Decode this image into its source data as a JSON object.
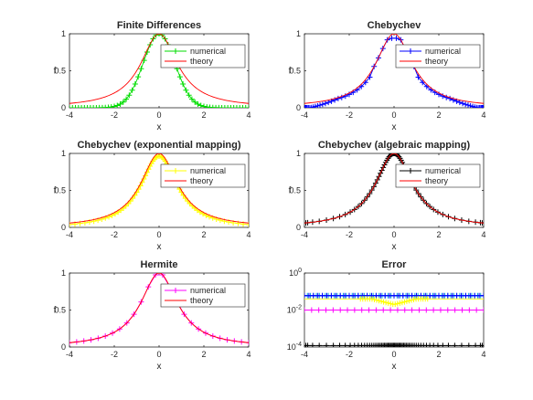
{
  "figure": {
    "colors": {
      "green": "#00dd00",
      "blue": "#0000ff",
      "yellow": "#ffff00",
      "black": "#000000",
      "magenta": "#ff00ff",
      "red": "#ff0000",
      "teal": "#0aa8d8"
    }
  },
  "chart_data": [
    {
      "type": "line",
      "title": "Finite Differences",
      "xlabel": "x",
      "ylabel": "f",
      "xlim": [
        -4,
        4
      ],
      "ylim": [
        0,
        1
      ],
      "xticks": [
        "-4",
        "-2",
        "0",
        "2",
        "4"
      ],
      "yticks": [
        "0",
        "0.5",
        "1"
      ],
      "legend_position": "top-right",
      "numerical_color": "green",
      "numerical_sample": {
        "x_start": -4,
        "x_end": 4,
        "count": 61,
        "function": "exp(-x^2)"
      },
      "series": [
        {
          "name": "numerical",
          "x": [
            -4,
            -3,
            -2,
            -1.5,
            -1,
            -0.5,
            0,
            0.5,
            1,
            1.5,
            2,
            3,
            4
          ],
          "y": [
            0.0,
            0.0,
            0.02,
            0.1,
            0.37,
            0.78,
            1.0,
            0.78,
            0.37,
            0.1,
            0.02,
            0.0,
            0.0
          ]
        },
        {
          "name": "theory",
          "x": [
            -4,
            -3,
            -2,
            -1.5,
            -1,
            -0.5,
            0,
            0.5,
            1,
            1.5,
            2,
            3,
            4
          ],
          "y": [
            0.06,
            0.1,
            0.2,
            0.31,
            0.5,
            0.8,
            1.0,
            0.8,
            0.5,
            0.31,
            0.2,
            0.1,
            0.06
          ]
        }
      ]
    },
    {
      "type": "line",
      "title": "Chebychev",
      "xlabel": "x",
      "ylabel": "f",
      "xlim": [
        -4,
        4
      ],
      "ylim": [
        0,
        1
      ],
      "xticks": [
        "-4",
        "-2",
        "0",
        "2",
        "4"
      ],
      "yticks": [
        "0",
        "0.5",
        "1"
      ],
      "legend_position": "top-right",
      "numerical_color": "blue",
      "numerical_sample": {
        "grid": "chebyshev",
        "count": 64,
        "function": "1/(1+x^2)*0.94",
        "cap": 0.94
      },
      "series": [
        {
          "name": "numerical",
          "x": [
            -4,
            -3,
            -2,
            -1,
            -0.5,
            0,
            0.5,
            1,
            2,
            3,
            4
          ],
          "y": [
            0.0,
            0.03,
            0.15,
            0.47,
            0.75,
            0.94,
            0.75,
            0.47,
            0.15,
            0.03,
            0.0
          ]
        },
        {
          "name": "theory",
          "x": [
            -4,
            -3,
            -2,
            -1,
            -0.5,
            0,
            0.5,
            1,
            2,
            3,
            4
          ],
          "y": [
            0.06,
            0.1,
            0.2,
            0.5,
            0.8,
            1.0,
            0.8,
            0.5,
            0.2,
            0.1,
            0.06
          ]
        }
      ]
    },
    {
      "type": "line",
      "title": "Chebychev (exponential mapping)",
      "xlabel": "x",
      "ylabel": "f",
      "xlim": [
        -4,
        4
      ],
      "ylim": [
        0,
        1
      ],
      "xticks": [
        "-4",
        "-2",
        "0",
        "2",
        "4"
      ],
      "yticks": [
        "0",
        "0.5",
        "1"
      ],
      "legend_position": "top-right",
      "numerical_color": "yellow",
      "numerical_sample": {
        "grid": "exponential-map",
        "count": 70,
        "function": "1/(1+x^2)*0.985"
      },
      "series": [
        {
          "name": "numerical",
          "x": [
            -4,
            -3,
            -2,
            -1,
            -0.5,
            0,
            0.5,
            1,
            2,
            3,
            4
          ],
          "y": [
            0.03,
            0.07,
            0.17,
            0.47,
            0.78,
            0.98,
            0.78,
            0.47,
            0.17,
            0.07,
            0.03
          ]
        },
        {
          "name": "theory",
          "x": [
            -4,
            -3,
            -2,
            -1,
            -0.5,
            0,
            0.5,
            1,
            2,
            3,
            4
          ],
          "y": [
            0.06,
            0.1,
            0.2,
            0.5,
            0.8,
            1.0,
            0.8,
            0.5,
            0.2,
            0.1,
            0.06
          ]
        }
      ]
    },
    {
      "type": "line",
      "title": "Chebychev (algebraic mapping)",
      "xlabel": "x",
      "ylabel": "f",
      "xlim": [
        -4,
        4
      ],
      "ylim": [
        0,
        1
      ],
      "xticks": [
        "-4",
        "-2",
        "0",
        "2",
        "4"
      ],
      "yticks": [
        "0",
        "0.5",
        "1"
      ],
      "legend_position": "top-right",
      "numerical_color": "black",
      "numerical_sample": {
        "grid": "algebraic-map",
        "count": 64,
        "function": "1/(1+x^2)"
      },
      "series": [
        {
          "name": "numerical",
          "x": [
            -4,
            -3,
            -2,
            -1,
            -0.5,
            0,
            0.5,
            1,
            2,
            3,
            4
          ],
          "y": [
            0.06,
            0.1,
            0.2,
            0.5,
            0.8,
            1.0,
            0.8,
            0.5,
            0.2,
            0.1,
            0.06
          ]
        },
        {
          "name": "theory",
          "x": [
            -4,
            -3,
            -2,
            -1,
            -0.5,
            0,
            0.5,
            1,
            2,
            3,
            4
          ],
          "y": [
            0.06,
            0.1,
            0.2,
            0.5,
            0.8,
            1.0,
            0.8,
            0.5,
            0.2,
            0.1,
            0.06
          ]
        }
      ]
    },
    {
      "type": "line",
      "title": "Hermite",
      "xlabel": "x",
      "ylabel": "f",
      "xlim": [
        -4,
        4
      ],
      "ylim": [
        0,
        1
      ],
      "xticks": [
        "-4",
        "-2",
        "0",
        "2",
        "4"
      ],
      "yticks": [
        "0",
        "0.5",
        "1"
      ],
      "legend_position": "top-right",
      "numerical_color": "magenta",
      "numerical_sample": {
        "x_start": -4,
        "x_end": 4,
        "count": 26,
        "function": "1/(1+x^2)"
      },
      "series": [
        {
          "name": "numerical",
          "x": [
            -4,
            -3,
            -2,
            -1,
            -0.5,
            0,
            0.5,
            1,
            2,
            3,
            4
          ],
          "y": [
            0.06,
            0.1,
            0.2,
            0.5,
            0.8,
            1.0,
            0.8,
            0.5,
            0.2,
            0.1,
            0.06
          ]
        },
        {
          "name": "theory",
          "x": [
            -4,
            -3,
            -2,
            -1,
            -0.5,
            0,
            0.5,
            1,
            2,
            3,
            4
          ],
          "y": [
            0.06,
            0.1,
            0.2,
            0.5,
            0.8,
            1.0,
            0.8,
            0.5,
            0.2,
            0.1,
            0.06
          ]
        }
      ]
    },
    {
      "type": "line",
      "title": "Error",
      "xlabel": "x",
      "ylabel": "",
      "xlim": [
        -4,
        4
      ],
      "yscale": "log",
      "ylim": [
        0.0001,
        1
      ],
      "xticks": [
        "-4",
        "-2",
        "0",
        "2",
        "4"
      ],
      "yticks": [
        {
          "base": "10",
          "exp": "0",
          "value": 1
        },
        {
          "base": "10",
          "exp": "-2",
          "value": 0.01
        },
        {
          "base": "10",
          "exp": "-4",
          "value": 0.0001
        }
      ],
      "series": [
        {
          "color": "teal",
          "x": [
            -4,
            4
          ],
          "y": [
            0.06,
            0.06
          ],
          "sample": {
            "x_start": -4,
            "x_end": 4,
            "count": 61
          }
        },
        {
          "color": "blue",
          "x": [
            -4,
            4
          ],
          "y": [
            0.06,
            0.06
          ],
          "sample": {
            "x_start": -4,
            "x_end": 4,
            "count": 41
          }
        },
        {
          "color": "yellow",
          "x": [
            -4,
            -1,
            0,
            1,
            4
          ],
          "y": [
            0.04,
            0.04,
            0.02,
            0.04,
            0.04
          ],
          "sample": {
            "x_start": -1.5,
            "x_end": 1.5,
            "count": 30
          }
        },
        {
          "color": "magenta",
          "x": [
            -4,
            4
          ],
          "y": [
            0.01,
            0.01
          ],
          "sample": {
            "x_start": -4,
            "x_end": 4,
            "count": 26
          }
        },
        {
          "color": "black",
          "x": [
            -4,
            4
          ],
          "y": [
            0.00012,
            0.00012
          ],
          "sample": {
            "grid": "algebraic-map",
            "count": 64
          }
        }
      ]
    }
  ]
}
